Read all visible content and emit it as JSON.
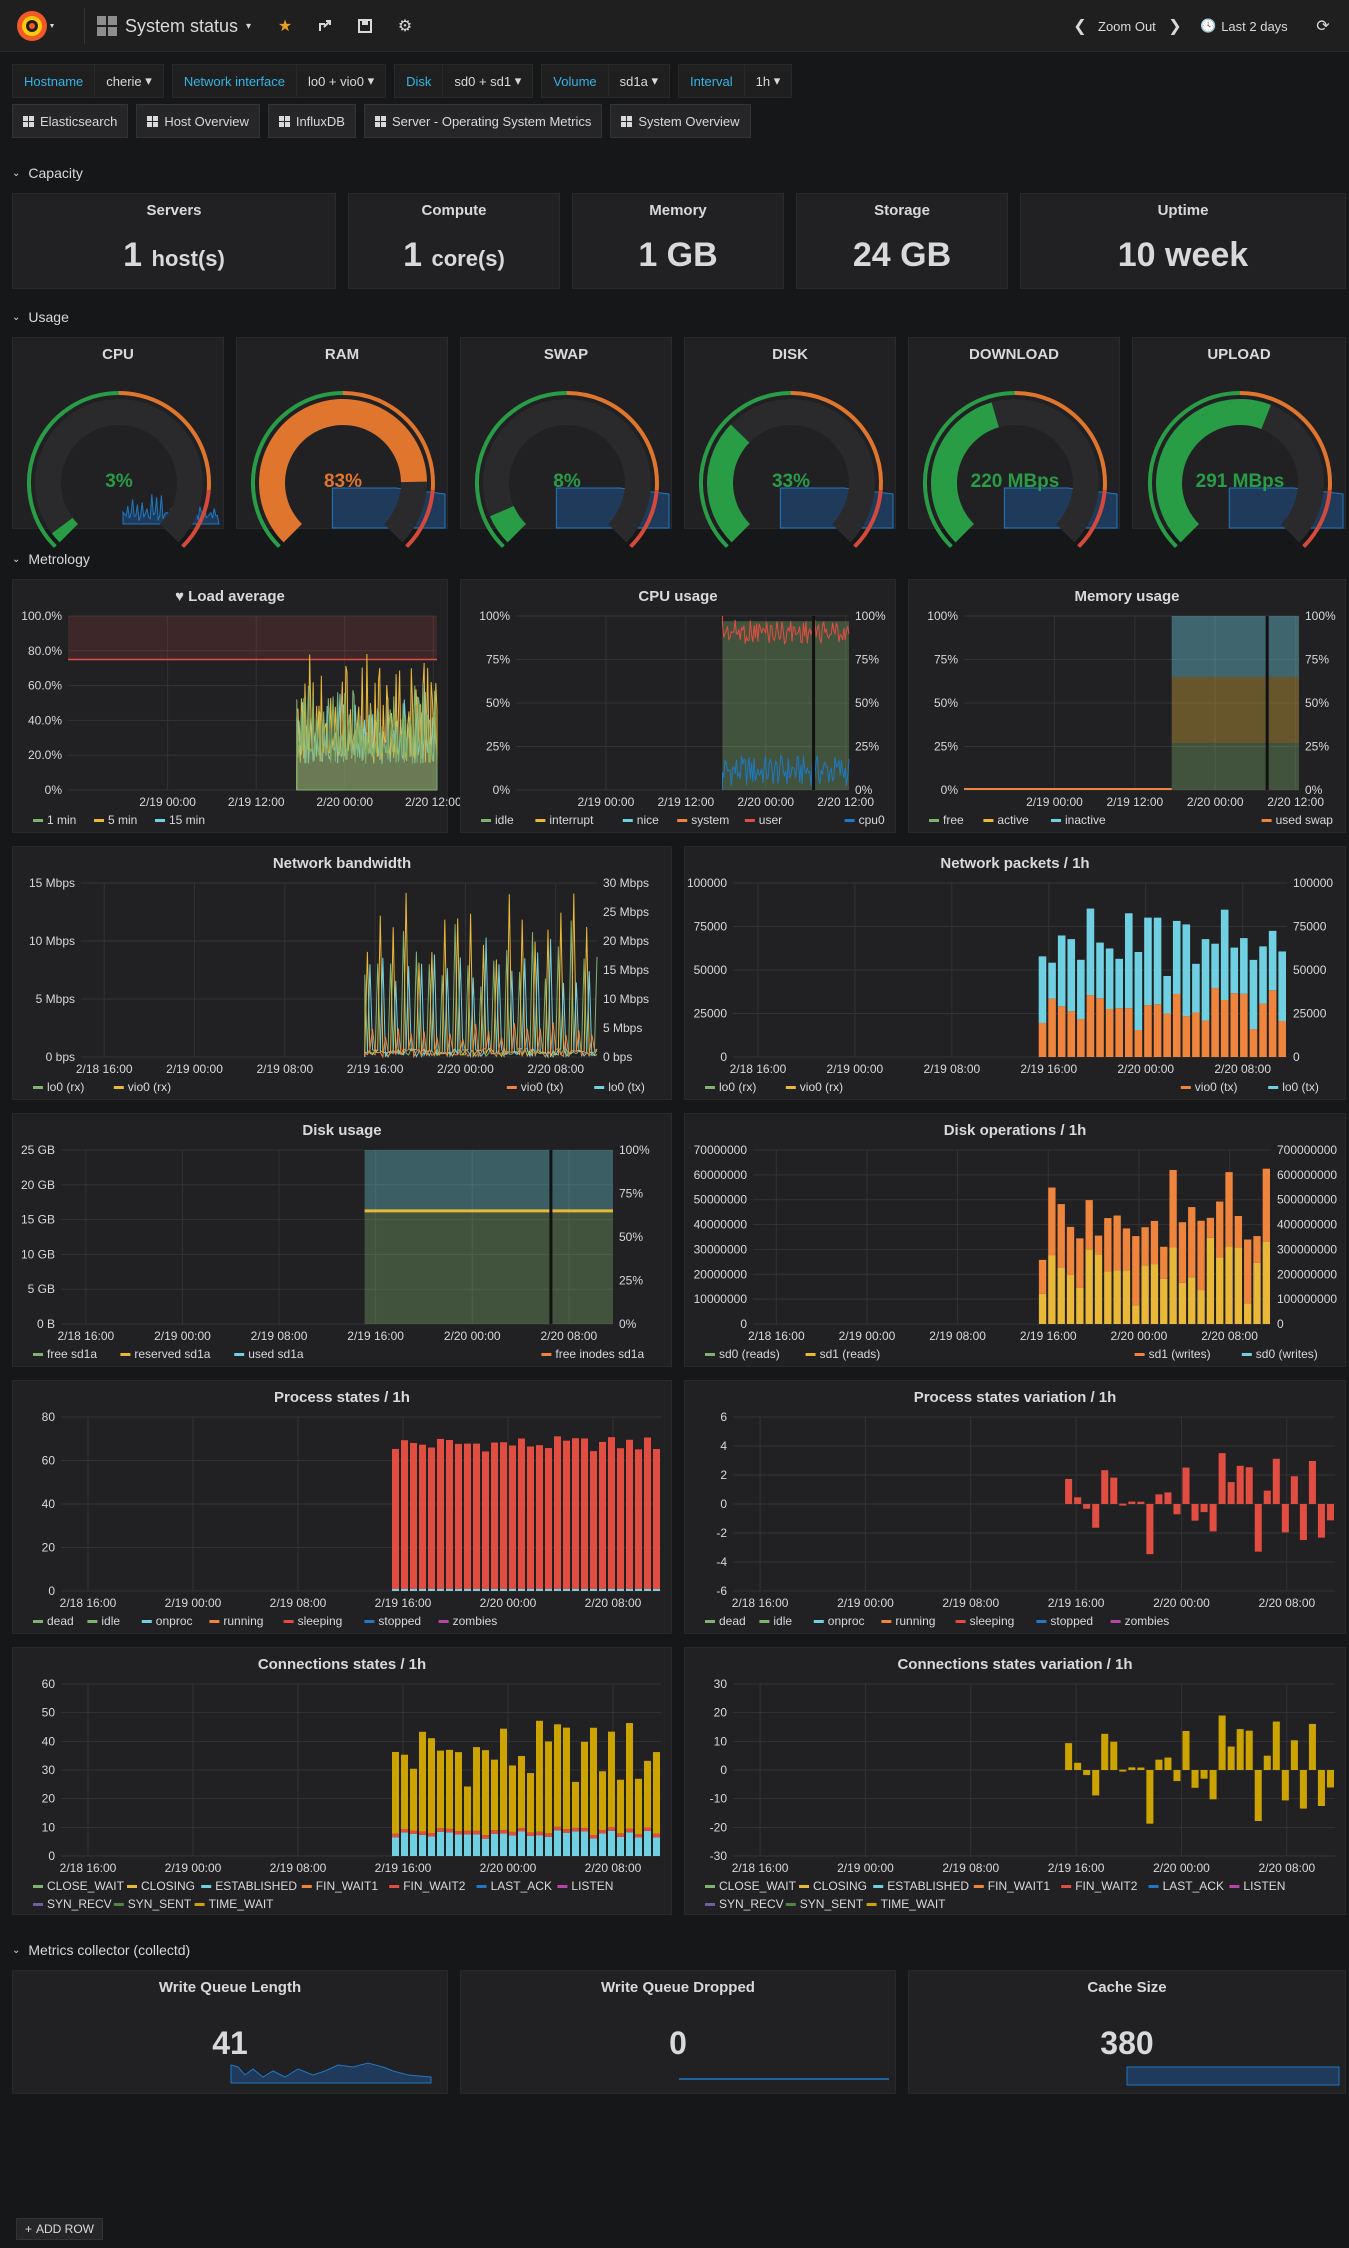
{
  "topbar": {
    "title": "System status",
    "zoom_out": "Zoom Out",
    "time_range": "Last 2 days"
  },
  "variables": [
    {
      "label": "Hostname",
      "value": "cherie"
    },
    {
      "label": "Network interface",
      "value": "lo0 + vio0"
    },
    {
      "label": "Disk",
      "value": "sd0 + sd1"
    },
    {
      "label": "Volume",
      "value": "sd1a"
    },
    {
      "label": "Interval",
      "value": "1h"
    }
  ],
  "links": [
    "Elasticsearch",
    "Host Overview",
    "InfluxDB",
    "Server - Operating System Metrics",
    "System Overview"
  ],
  "rows": {
    "capacity": "Capacity",
    "usage": "Usage",
    "metrology": "Metrology",
    "collector": "Metrics collector (collectd)"
  },
  "capacity": [
    {
      "title": "Servers",
      "value": "1",
      "unit": "host(s)"
    },
    {
      "title": "Compute",
      "value": "1",
      "unit": "core(s)"
    },
    {
      "title": "Memory",
      "value": "1 GB",
      "unit": ""
    },
    {
      "title": "Storage",
      "value": "24 GB",
      "unit": ""
    },
    {
      "title": "Uptime",
      "value": "10 week",
      "unit": ""
    }
  ],
  "gauges": [
    {
      "title": "CPU",
      "value": "3%",
      "fraction": 0.03,
      "color": "#299c46"
    },
    {
      "title": "RAM",
      "value": "83%",
      "fraction": 0.83,
      "color": "#e0752d"
    },
    {
      "title": "SWAP",
      "value": "8%",
      "fraction": 0.08,
      "color": "#299c46"
    },
    {
      "title": "DISK",
      "value": "33%",
      "fraction": 0.33,
      "color": "#299c46"
    },
    {
      "title": "DOWNLOAD",
      "value": "220 MBps",
      "fraction": 0.44,
      "color": "#299c46"
    },
    {
      "title": "UPLOAD",
      "value": "291 MBps",
      "fraction": 0.58,
      "color": "#299c46"
    }
  ],
  "collector": [
    {
      "title": "Write Queue Length",
      "value": "41"
    },
    {
      "title": "Write Queue Dropped",
      "value": "0"
    },
    {
      "title": "Cache Size",
      "value": "380"
    }
  ],
  "add_row": "ADD ROW",
  "colors": {
    "green": "#7eb26d",
    "yellow": "#eab839",
    "cyan": "#6ed0e0",
    "orange": "#ef843c",
    "red": "#e24d42",
    "blue": "#1f78c1",
    "magenta": "#ba43a9",
    "purple": "#705da0",
    "darkgreen": "#508642",
    "gold": "#cca300",
    "tealbar": "#447ebc"
  },
  "chart_data": [
    {
      "title": "Load average",
      "type": "line",
      "y_ticks": [
        "100.0%",
        "80.0%",
        "60.0%",
        "40.0%",
        "20.0%",
        "0%"
      ],
      "x_ticks": [
        "2/19 00:00",
        "2/19 12:00",
        "2/20 00:00",
        "2/20 12:00"
      ],
      "legend": [
        "1 min",
        "5 min",
        "15 min"
      ],
      "threshold": 0.75
    },
    {
      "title": "CPU usage",
      "type": "area",
      "y_ticks": [
        "100%",
        "75%",
        "50%",
        "25%",
        "0%"
      ],
      "y2_ticks": [
        "100%",
        "75%",
        "50%",
        "25%",
        "0%"
      ],
      "x_ticks": [
        "2/19 00:00",
        "2/19 12:00",
        "2/20 00:00",
        "2/20 12:00"
      ],
      "legend_left": [
        "idle",
        "interrupt",
        "nice",
        "system",
        "user"
      ],
      "legend_right": [
        "cpu0"
      ]
    },
    {
      "title": "Memory usage",
      "type": "area",
      "y_ticks": [
        "100%",
        "75%",
        "50%",
        "25%",
        "0%"
      ],
      "y2_ticks": [
        "100%",
        "75%",
        "50%",
        "25%",
        "0%"
      ],
      "x_ticks": [
        "2/19 00:00",
        "2/19 12:00",
        "2/20 00:00",
        "2/20 12:00"
      ],
      "legend_left": [
        "free",
        "active",
        "inactive"
      ],
      "legend_right": [
        "used swap"
      ]
    },
    {
      "title": "Network bandwidth",
      "type": "line",
      "y_ticks": [
        "15 Mbps",
        "10 Mbps",
        "5 Mbps",
        "0 bps"
      ],
      "y2_ticks": [
        "30 Mbps",
        "25 Mbps",
        "20 Mbps",
        "15 Mbps",
        "10 Mbps",
        "5 Mbps",
        "0 bps"
      ],
      "x_ticks": [
        "2/18 16:00",
        "2/19 00:00",
        "2/19 08:00",
        "2/19 16:00",
        "2/20 00:00",
        "2/20 08:00"
      ],
      "legend_left": [
        "lo0 (rx)",
        "vio0 (rx)"
      ],
      "legend_right": [
        "vio0 (tx)",
        "lo0 (tx)"
      ]
    },
    {
      "title": "Network packets / 1h",
      "type": "bar",
      "y_ticks": [
        "100000",
        "75000",
        "50000",
        "25000",
        "0"
      ],
      "y2_ticks": [
        "100000",
        "75000",
        "50000",
        "25000",
        "0"
      ],
      "x_ticks": [
        "2/18 16:00",
        "2/19 00:00",
        "2/19 08:00",
        "2/19 16:00",
        "2/20 00:00",
        "2/20 08:00"
      ],
      "legend_left": [
        "lo0 (rx)",
        "vio0 (rx)"
      ],
      "legend_right": [
        "vio0 (tx)",
        "lo0 (tx)"
      ]
    },
    {
      "title": "Disk usage",
      "type": "area",
      "y_ticks": [
        "25 GB",
        "20 GB",
        "15 GB",
        "10 GB",
        "5 GB",
        "0 B"
      ],
      "y2_ticks": [
        "100%",
        "75%",
        "50%",
        "25%",
        "0%"
      ],
      "x_ticks": [
        "2/18 16:00",
        "2/19 00:00",
        "2/19 08:00",
        "2/19 16:00",
        "2/20 00:00",
        "2/20 08:00"
      ],
      "legend_left": [
        "free sd1a",
        "reserved sd1a",
        "used sd1a"
      ],
      "legend_right": [
        "free inodes sd1a"
      ]
    },
    {
      "title": "Disk operations / 1h",
      "type": "bar",
      "y_ticks": [
        "70000000",
        "60000000",
        "50000000",
        "40000000",
        "30000000",
        "20000000",
        "10000000",
        "0"
      ],
      "y2_ticks": [
        "700000000",
        "600000000",
        "500000000",
        "400000000",
        "300000000",
        "200000000",
        "100000000",
        "0"
      ],
      "x_ticks": [
        "2/18 16:00",
        "2/19 00:00",
        "2/19 08:00",
        "2/19 16:00",
        "2/20 00:00",
        "2/20 08:00"
      ],
      "legend_left": [
        "sd0 (reads)",
        "sd1 (reads)"
      ],
      "legend_right": [
        "sd1 (writes)",
        "sd0 (writes)"
      ]
    },
    {
      "title": "Process states / 1h",
      "type": "bar",
      "y_ticks": [
        "80",
        "60",
        "40",
        "20",
        "0"
      ],
      "x_ticks": [
        "2/18 16:00",
        "2/19 00:00",
        "2/19 08:00",
        "2/19 16:00",
        "2/20 00:00",
        "2/20 08:00"
      ],
      "legend_left": [
        "dead",
        "idle",
        "onproc",
        "running",
        "sleeping",
        "stopped",
        "zombies"
      ]
    },
    {
      "title": "Process states variation / 1h",
      "type": "bar",
      "y_ticks": [
        "6",
        "4",
        "2",
        "0",
        "-2",
        "-4",
        "-6"
      ],
      "x_ticks": [
        "2/18 16:00",
        "2/19 00:00",
        "2/19 08:00",
        "2/19 16:00",
        "2/20 00:00",
        "2/20 08:00"
      ],
      "legend_left": [
        "dead",
        "idle",
        "onproc",
        "running",
        "sleeping",
        "stopped",
        "zombies"
      ]
    },
    {
      "title": "Connections states / 1h",
      "type": "bar",
      "y_ticks": [
        "60",
        "50",
        "40",
        "30",
        "20",
        "10",
        "0"
      ],
      "x_ticks": [
        "2/18 16:00",
        "2/19 00:00",
        "2/19 08:00",
        "2/19 16:00",
        "2/20 00:00",
        "2/20 08:00"
      ],
      "legend_left": [
        "CLOSE_WAIT",
        "CLOSING",
        "ESTABLISHED",
        "FIN_WAIT1",
        "FIN_WAIT2",
        "LAST_ACK",
        "LISTEN",
        "SYN_RECV",
        "SYN_SENT",
        "TIME_WAIT"
      ]
    },
    {
      "title": "Connections states variation / 1h",
      "type": "bar",
      "y_ticks": [
        "30",
        "20",
        "10",
        "0",
        "-10",
        "-20",
        "-30"
      ],
      "x_ticks": [
        "2/18 16:00",
        "2/19 00:00",
        "2/19 08:00",
        "2/19 16:00",
        "2/20 00:00",
        "2/20 08:00"
      ],
      "legend_left": [
        "CLOSE_WAIT",
        "CLOSING",
        "ESTABLISHED",
        "FIN_WAIT1",
        "FIN_WAIT2",
        "LAST_ACK",
        "LISTEN",
        "SYN_RECV",
        "SYN_SENT",
        "TIME_WAIT"
      ]
    }
  ]
}
